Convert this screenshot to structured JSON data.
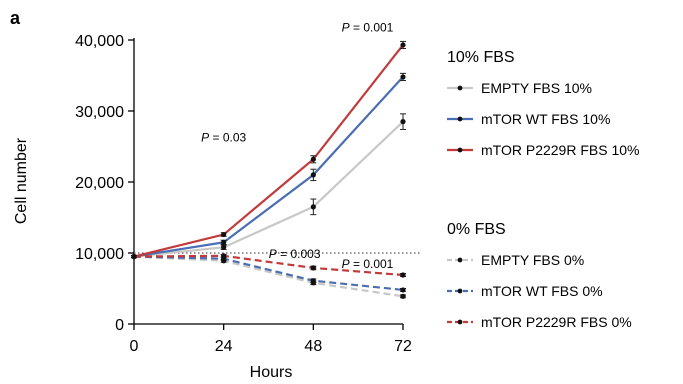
{
  "panel_label": "a",
  "chart_data": {
    "type": "line",
    "xlabel": "Hours",
    "ylabel": "Cell number",
    "x": [
      0,
      24,
      48,
      72
    ],
    "x_ticks": [
      "0",
      "24",
      "48",
      "72"
    ],
    "y_ticks": [
      "0",
      "10,000",
      "20,000",
      "30,000",
      "40,000"
    ],
    "xlim": [
      0,
      72
    ],
    "ylim": [
      0,
      40000
    ],
    "reference_line": {
      "y": 10000,
      "style": "dotted",
      "color": "#555555"
    },
    "legend_position": "right",
    "legend_groups": [
      {
        "title": "10% FBS",
        "series_indices": [
          0,
          1,
          2
        ]
      },
      {
        "title": "0% FBS",
        "series_indices": [
          3,
          4,
          5
        ]
      }
    ],
    "series": [
      {
        "name": "EMPTY FBS 10%",
        "color": "#c8c8c8",
        "dashed": false,
        "values": [
          9500,
          10800,
          16500,
          28500
        ],
        "errors": [
          150,
          300,
          1100,
          1100
        ]
      },
      {
        "name": "mTOR WT FBS 10%",
        "color": "#4a6db3",
        "dashed": false,
        "values": [
          9500,
          11500,
          21000,
          34800
        ],
        "errors": [
          150,
          300,
          800,
          500
        ]
      },
      {
        "name": "mTOR P2229R FBS 10%",
        "color": "#c23a3a",
        "dashed": false,
        "values": [
          9500,
          12600,
          23200,
          39300
        ],
        "errors": [
          150,
          250,
          500,
          500
        ]
      },
      {
        "name": "EMPTY FBS 0%",
        "color": "#c8c8c8",
        "dashed": true,
        "values": [
          9500,
          8900,
          5800,
          3900
        ],
        "errors": [
          150,
          200,
          250,
          200
        ]
      },
      {
        "name": "mTOR WT FBS 0%",
        "color": "#4a6db3",
        "dashed": true,
        "values": [
          9500,
          9200,
          6100,
          4800
        ],
        "errors": [
          150,
          200,
          250,
          200
        ]
      },
      {
        "name": "mTOR P2229R FBS 0%",
        "color": "#c23a3a",
        "dashed": true,
        "values": [
          9500,
          9600,
          7900,
          6900
        ],
        "errors": [
          150,
          200,
          250,
          200
        ]
      }
    ],
    "annotations": [
      {
        "prefix": "P",
        "text": " = 0.03",
        "x": 24,
        "y": 25700
      },
      {
        "prefix": "P",
        "text": " = 0.001",
        "x": 62.5,
        "y": 41200
      },
      {
        "prefix": "P",
        "text": " = 0.003",
        "x": 43,
        "y": 9300
      },
      {
        "prefix": "P",
        "text": " = 0.001",
        "x": 62.5,
        "y": 7900
      }
    ]
  }
}
